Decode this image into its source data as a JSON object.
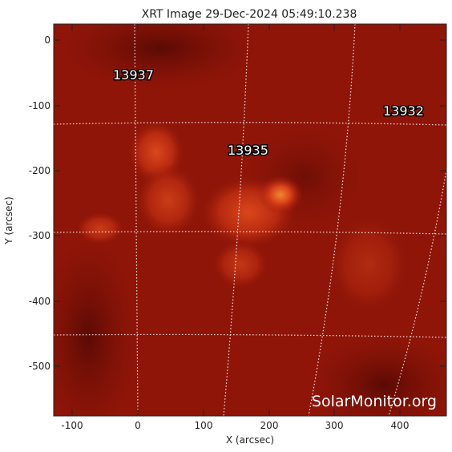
{
  "figure": {
    "title": "XRT Image 29-Dec-2024 05:49:10.238",
    "xlabel": "X (arcsec)",
    "ylabel": "Y (arcsec)",
    "x_ticks": [
      "-100",
      "0",
      "100",
      "200",
      "300",
      "400"
    ],
    "y_ticks": [
      "0",
      "-100",
      "-200",
      "-300",
      "-400",
      "-500"
    ],
    "watermark": "SolarMonitor.org"
  },
  "active_regions": [
    {
      "id": "13937"
    },
    {
      "id": "13935"
    },
    {
      "id": "13932"
    }
  ],
  "colors": {
    "background": "#8e1508",
    "dark_region": "#6b0e06",
    "bright_core": "#e7571c",
    "grid": "#ffffff"
  }
}
